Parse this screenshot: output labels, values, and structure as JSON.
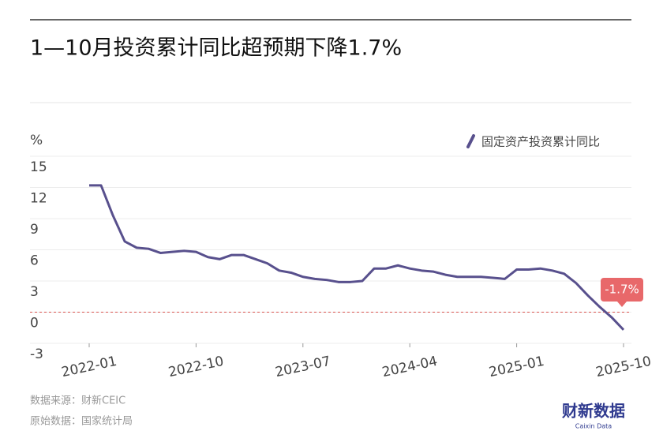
{
  "chart_data": {
    "type": "line",
    "title": "1—10月投资累计同比超预期下降1.7%",
    "y_label": "%",
    "categories": [
      "2022-01",
      null,
      null,
      null,
      null,
      null,
      null,
      null,
      null,
      "2022-10",
      null,
      null,
      null,
      null,
      null,
      null,
      null,
      null,
      "2023-07",
      null,
      null,
      null,
      null,
      null,
      null,
      null,
      null,
      "2024-04",
      null,
      null,
      null,
      null,
      null,
      null,
      null,
      null,
      "2025-01",
      null,
      null,
      null,
      null,
      null,
      null,
      null,
      null,
      "2025-10"
    ],
    "series": [
      {
        "name": "固定资产投资累计同比",
        "color": "#58508d",
        "values": [
          12.2,
          12.2,
          9.3,
          6.8,
          6.2,
          6.1,
          5.7,
          5.8,
          5.9,
          5.8,
          5.3,
          5.1,
          5.5,
          5.5,
          5.1,
          4.7,
          4.0,
          3.8,
          3.4,
          3.2,
          3.1,
          2.9,
          2.9,
          3.0,
          4.2,
          4.2,
          4.5,
          4.2,
          4.0,
          3.9,
          3.6,
          3.4,
          3.4,
          3.4,
          3.3,
          3.2,
          4.1,
          4.1,
          4.2,
          4.0,
          3.7,
          2.8,
          1.6,
          0.5,
          -0.5,
          -1.7
        ]
      }
    ],
    "ylim": [
      -3,
      15
    ],
    "yticks": [
      -3,
      0,
      3,
      6,
      9,
      12,
      15
    ],
    "grid": true,
    "reference_line": {
      "value": 0,
      "color": "#d9534f"
    },
    "annotation": {
      "text": "-1.7%",
      "color": "#e8686a"
    },
    "legend": "top-right",
    "source": "数据来源：财新CEIC",
    "original_source": "原始数据：国家统计局",
    "logo": "财新数据",
    "logo_sub": "Caixin Data"
  }
}
